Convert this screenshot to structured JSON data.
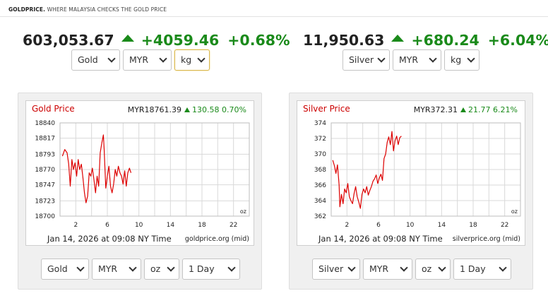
{
  "header": {
    "brand": "GOLDPRICE.",
    "tagline": "WHERE MALAYSIA CHECKS THE GOLD PRICE"
  },
  "gold": {
    "price": "603,053.67",
    "change": "+4059.46",
    "change_pct": "+0.68%",
    "selectors": {
      "metal": "Gold",
      "currency": "MYR",
      "unit": "kg"
    },
    "chart": {
      "title": "Gold Price",
      "quote_price": "MYR18761.39",
      "quote_change": "130.58",
      "quote_pct": "0.70%",
      "date": "Jan 14, 2026 at 09:08 NY Time",
      "source": "goldprice.org (mid)",
      "unit_label": "oz",
      "bottom_selectors": {
        "metal": "Gold",
        "currency": "MYR",
        "unit": "oz",
        "range": "1 Day"
      }
    }
  },
  "silver": {
    "price": "11,950.63",
    "change": "+680.24",
    "change_pct": "+6.04%",
    "selectors": {
      "metal": "Silver",
      "currency": "MYR",
      "unit": "kg"
    },
    "chart": {
      "title": "Silver Price",
      "quote_price": "MYR372.31",
      "quote_change": "21.77",
      "quote_pct": "6.21%",
      "date": "Jan 14, 2026 at 09:08 NY Time",
      "source": "silverprice.org (mid)",
      "unit_label": "oz",
      "bottom_selectors": {
        "metal": "Silver",
        "currency": "MYR",
        "unit": "oz",
        "range": "1 Day"
      }
    }
  },
  "colors": {
    "up": "#1a8a1a",
    "line": "#dd0000",
    "title": "#cc0000"
  },
  "chart_data": [
    {
      "type": "line",
      "title": "Gold Price",
      "xlim": [
        0,
        24
      ],
      "ylim": [
        18700,
        18840
      ],
      "x_ticks": [
        "2",
        "6",
        "10",
        "14",
        "18",
        "22"
      ],
      "y_ticks": [
        "18840",
        "18817",
        "18793",
        "18770",
        "18747",
        "18723",
        "18700"
      ],
      "series": [
        {
          "values": [
            [
              0.3,
              18790
            ],
            [
              0.6,
              18800
            ],
            [
              0.9,
              18795
            ],
            [
              1.1,
              18778
            ],
            [
              1.3,
              18745
            ],
            [
              1.5,
              18785
            ],
            [
              1.7,
              18770
            ],
            [
              1.9,
              18780
            ],
            [
              2.1,
              18760
            ],
            [
              2.3,
              18785
            ],
            [
              2.5,
              18770
            ],
            [
              2.7,
              18778
            ],
            [
              2.9,
              18758
            ],
            [
              3.1,
              18735
            ],
            [
              3.3,
              18720
            ],
            [
              3.5,
              18730
            ],
            [
              3.7,
              18765
            ],
            [
              3.9,
              18760
            ],
            [
              4.1,
              18772
            ],
            [
              4.3,
              18755
            ],
            [
              4.5,
              18735
            ],
            [
              4.7,
              18760
            ],
            [
              4.9,
              18745
            ],
            [
              5.1,
              18795
            ],
            [
              5.3,
              18810
            ],
            [
              5.5,
              18822
            ],
            [
              5.6,
              18800
            ],
            [
              5.8,
              18742
            ],
            [
              6.0,
              18760
            ],
            [
              6.2,
              18775
            ],
            [
              6.4,
              18745
            ],
            [
              6.6,
              18735
            ],
            [
              6.8,
              18748
            ],
            [
              7.0,
              18770
            ],
            [
              7.2,
              18760
            ],
            [
              7.4,
              18775
            ],
            [
              7.6,
              18765
            ],
            [
              7.8,
              18760
            ],
            [
              8.0,
              18748
            ],
            [
              8.2,
              18768
            ],
            [
              8.4,
              18745
            ],
            [
              8.6,
              18765
            ],
            [
              8.8,
              18772
            ],
            [
              9.0,
              18765
            ]
          ]
        }
      ]
    },
    {
      "type": "line",
      "title": "Silver Price",
      "xlim": [
        0,
        24
      ],
      "ylim": [
        362,
        374
      ],
      "x_ticks": [
        "2",
        "6",
        "10",
        "14",
        "18",
        "22"
      ],
      "y_ticks": [
        "374",
        "372",
        "370",
        "368",
        "366",
        "364",
        "362"
      ],
      "series": [
        {
          "values": [
            [
              0.2,
              369.2
            ],
            [
              0.4,
              368.5
            ],
            [
              0.6,
              367.5
            ],
            [
              0.8,
              368.6
            ],
            [
              1.0,
              366.0
            ],
            [
              1.1,
              363.2
            ],
            [
              1.3,
              364.8
            ],
            [
              1.5,
              363.6
            ],
            [
              1.7,
              365.5
            ],
            [
              1.9,
              365.0
            ],
            [
              2.1,
              366.2
            ],
            [
              2.3,
              364.5
            ],
            [
              2.5,
              364.0
            ],
            [
              2.7,
              363.6
            ],
            [
              2.9,
              364.9
            ],
            [
              3.1,
              365.8
            ],
            [
              3.3,
              364.5
            ],
            [
              3.5,
              363.8
            ],
            [
              3.7,
              363.0
            ],
            [
              3.9,
              364.8
            ],
            [
              4.1,
              365.5
            ],
            [
              4.3,
              365.0
            ],
            [
              4.5,
              365.8
            ],
            [
              4.7,
              364.7
            ],
            [
              4.9,
              365.3
            ],
            [
              5.1,
              365.8
            ],
            [
              5.3,
              366.5
            ],
            [
              5.5,
              366.8
            ],
            [
              5.7,
              367.3
            ],
            [
              5.9,
              366.2
            ],
            [
              6.1,
              366.9
            ],
            [
              6.3,
              367.4
            ],
            [
              6.5,
              366.6
            ],
            [
              6.7,
              369.4
            ],
            [
              6.9,
              370.0
            ],
            [
              7.1,
              371.5
            ],
            [
              7.3,
              372.2
            ],
            [
              7.5,
              371.2
            ],
            [
              7.7,
              372.9
            ],
            [
              7.9,
              370.4
            ],
            [
              8.1,
              371.7
            ],
            [
              8.3,
              372.3
            ],
            [
              8.5,
              371.2
            ],
            [
              8.7,
              372.1
            ],
            [
              8.9,
              372.3
            ]
          ]
        }
      ]
    }
  ]
}
